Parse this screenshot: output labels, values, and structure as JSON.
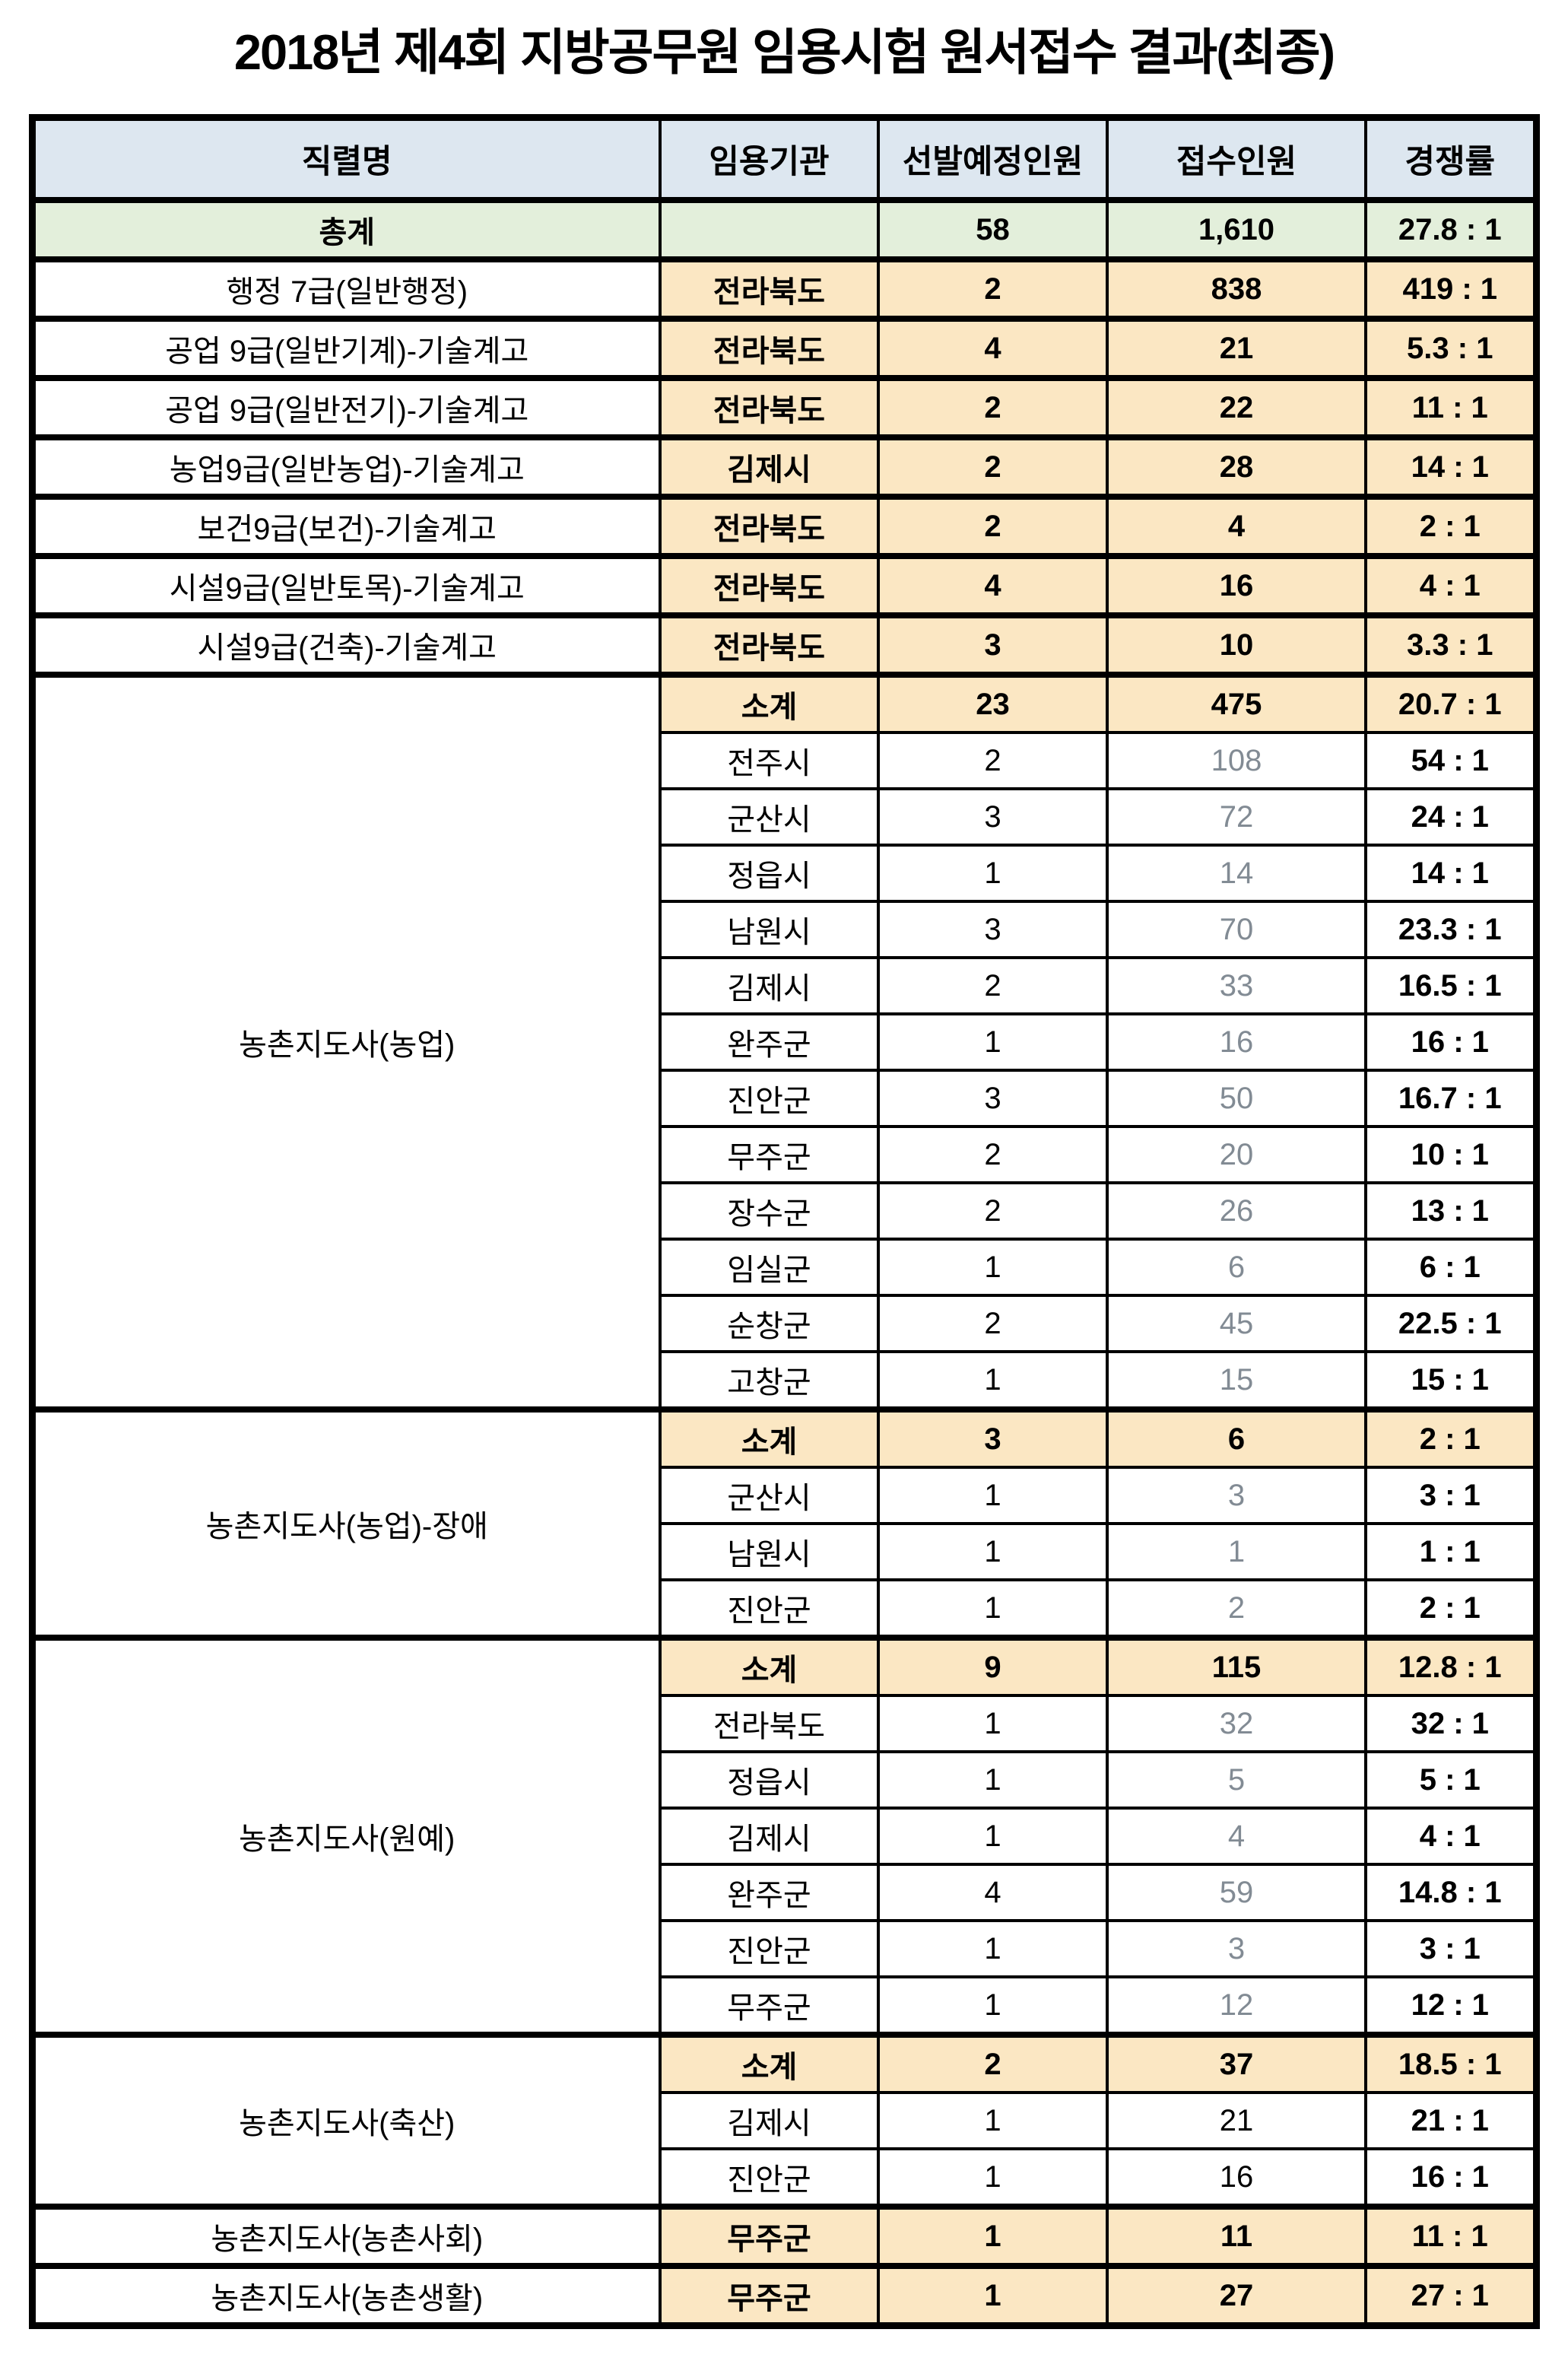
{
  "title": "2018년 제4회 지방공무원 임용시험 원서접수 결과(최종)",
  "table": {
    "columns": [
      "직렬명",
      "임용기관",
      "선발예정인원",
      "접수인원",
      "경쟁률"
    ],
    "rows": [
      {
        "type": "total",
        "job": "총계",
        "agency": "",
        "planned": "58",
        "applicants": "1,610",
        "ratio": "27.8 : 1"
      },
      {
        "type": "single",
        "job": "행정 7급(일반행정)",
        "agency": "전라북도",
        "planned": "2",
        "applicants": "838",
        "ratio": "419 : 1"
      },
      {
        "type": "single",
        "job": "공업 9급(일반기계)-기술계고",
        "agency": "전라북도",
        "planned": "4",
        "applicants": "21",
        "ratio": "5.3 : 1"
      },
      {
        "type": "single",
        "job": "공업 9급(일반전기)-기술계고",
        "agency": "전라북도",
        "planned": "2",
        "applicants": "22",
        "ratio": "11 : 1"
      },
      {
        "type": "single",
        "job": "농업9급(일반농업)-기술계고",
        "agency": "김제시",
        "planned": "2",
        "applicants": "28",
        "ratio": "14 : 1"
      },
      {
        "type": "single",
        "job": "보건9급(보건)-기술계고",
        "agency": "전라북도",
        "planned": "2",
        "applicants": "4",
        "ratio": "2 : 1"
      },
      {
        "type": "single",
        "job": "시설9급(일반토목)-기술계고",
        "agency": "전라북도",
        "planned": "4",
        "applicants": "16",
        "ratio": "4 : 1"
      },
      {
        "type": "single",
        "job": "시설9급(건축)-기술계고",
        "agency": "전라북도",
        "planned": "3",
        "applicants": "10",
        "ratio": "3.3 : 1"
      },
      {
        "type": "subtotal",
        "job": "농촌지도사(농업)",
        "rowspan": 13,
        "agency": "소계",
        "planned": "23",
        "applicants": "475",
        "ratio": "20.7 : 1"
      },
      {
        "type": "sub",
        "agency": "전주시",
        "planned": "2",
        "applicants": "108",
        "ratio": "54 : 1"
      },
      {
        "type": "sub",
        "agency": "군산시",
        "planned": "3",
        "applicants": "72",
        "ratio": "24 : 1"
      },
      {
        "type": "sub",
        "agency": "정읍시",
        "planned": "1",
        "applicants": "14",
        "ratio": "14 : 1"
      },
      {
        "type": "sub",
        "agency": "남원시",
        "planned": "3",
        "applicants": "70",
        "ratio": "23.3 : 1"
      },
      {
        "type": "sub",
        "agency": "김제시",
        "planned": "2",
        "applicants": "33",
        "ratio": "16.5 : 1"
      },
      {
        "type": "sub",
        "agency": "완주군",
        "planned": "1",
        "applicants": "16",
        "ratio": "16 : 1"
      },
      {
        "type": "sub",
        "agency": "진안군",
        "planned": "3",
        "applicants": "50",
        "ratio": "16.7 : 1"
      },
      {
        "type": "sub",
        "agency": "무주군",
        "planned": "2",
        "applicants": "20",
        "ratio": "10 : 1"
      },
      {
        "type": "sub",
        "agency": "장수군",
        "planned": "2",
        "applicants": "26",
        "ratio": "13 : 1"
      },
      {
        "type": "sub",
        "agency": "임실군",
        "planned": "1",
        "applicants": "6",
        "ratio": "6 : 1"
      },
      {
        "type": "sub",
        "agency": "순창군",
        "planned": "2",
        "applicants": "45",
        "ratio": "22.5 : 1"
      },
      {
        "type": "sub",
        "agency": "고창군",
        "planned": "1",
        "applicants": "15",
        "ratio": "15 : 1"
      },
      {
        "type": "subtotal",
        "job": "농촌지도사(농업)-장애",
        "rowspan": 4,
        "agency": "소계",
        "planned": "3",
        "applicants": "6",
        "ratio": "2 : 1"
      },
      {
        "type": "sub",
        "agency": "군산시",
        "planned": "1",
        "applicants": "3",
        "ratio": "3 : 1"
      },
      {
        "type": "sub",
        "agency": "남원시",
        "planned": "1",
        "applicants": "1",
        "ratio": "1 : 1"
      },
      {
        "type": "sub",
        "agency": "진안군",
        "planned": "1",
        "applicants": "2",
        "ratio": "2 : 1"
      },
      {
        "type": "subtotal",
        "job": "농촌지도사(원예)",
        "rowspan": 7,
        "agency": "소계",
        "planned": "9",
        "applicants": "115",
        "ratio": "12.8 : 1"
      },
      {
        "type": "sub",
        "agency": "전라북도",
        "planned": "1",
        "applicants": "32",
        "ratio": "32 : 1"
      },
      {
        "type": "sub",
        "agency": "정읍시",
        "planned": "1",
        "applicants": "5",
        "ratio": "5 : 1"
      },
      {
        "type": "sub",
        "agency": "김제시",
        "planned": "1",
        "applicants": "4",
        "ratio": "4 : 1"
      },
      {
        "type": "sub",
        "agency": "완주군",
        "planned": "4",
        "applicants": "59",
        "ratio": "14.8 : 1"
      },
      {
        "type": "sub",
        "agency": "진안군",
        "planned": "1",
        "applicants": "3",
        "ratio": "3 : 1"
      },
      {
        "type": "sub",
        "agency": "무주군",
        "planned": "1",
        "applicants": "12",
        "ratio": "12 : 1"
      },
      {
        "type": "subtotal",
        "job": "농촌지도사(축산)",
        "rowspan": 3,
        "agency": "소계",
        "planned": "2",
        "applicants": "37",
        "ratio": "18.5 : 1"
      },
      {
        "type": "sub-dark",
        "agency": "김제시",
        "planned": "1",
        "applicants": "21",
        "ratio": "21 : 1"
      },
      {
        "type": "sub-dark",
        "agency": "진안군",
        "planned": "1",
        "applicants": "16",
        "ratio": "16 : 1"
      },
      {
        "type": "single",
        "job": "농촌지도사(농촌사회)",
        "agency": "무주군",
        "planned": "1",
        "applicants": "11",
        "ratio": "11 : 1"
      },
      {
        "type": "single",
        "job": "농촌지도사(농촌생활)",
        "agency": "무주군",
        "planned": "1",
        "applicants": "27",
        "ratio": "27 : 1"
      }
    ]
  }
}
